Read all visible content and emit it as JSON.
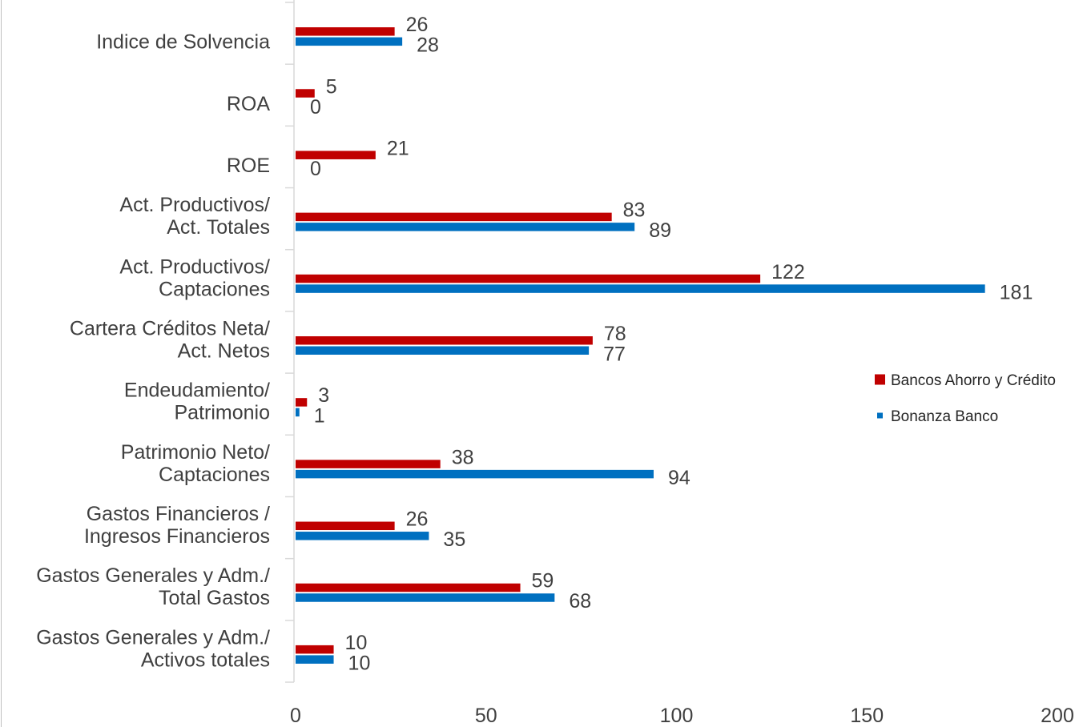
{
  "chart_data": {
    "type": "bar",
    "orientation": "horizontal",
    "title": "",
    "xlabel": "",
    "ylabel": "",
    "xlim": [
      0,
      200
    ],
    "xticks": [
      0,
      50,
      100,
      150,
      200
    ],
    "grid": false,
    "legend_position": "right",
    "categories": [
      [
        "Indice de Solvencia"
      ],
      [
        "ROA"
      ],
      [
        "ROE"
      ],
      [
        "Act. Productivos/",
        "Act. Totales"
      ],
      [
        "Act. Productivos/",
        "Captaciones"
      ],
      [
        "Cartera Créditos Neta/",
        "Act. Netos"
      ],
      [
        "Endeudamiento/",
        "Patrimonio"
      ],
      [
        "Patrimonio Neto/",
        "Captaciones"
      ],
      [
        "Gastos Financieros /",
        "Ingresos Financieros"
      ],
      [
        "Gastos Generales y Adm./",
        "Total Gastos"
      ],
      [
        "Gastos Generales y Adm./",
        "Activos totales"
      ]
    ],
    "series": [
      {
        "name": "Bancos Ahorro y Crédito",
        "color": "#c00000",
        "values": [
          26,
          5,
          21,
          83,
          122,
          78,
          3,
          38,
          26,
          59,
          10
        ]
      },
      {
        "name": "Bonanza Banco",
        "color": "#0070c0",
        "values": [
          28,
          0,
          0,
          89,
          181,
          77,
          1,
          94,
          35,
          68,
          10
        ]
      }
    ]
  }
}
